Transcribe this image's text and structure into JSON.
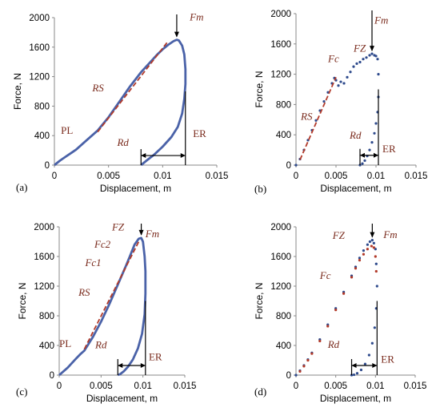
{
  "chart_data": [
    {
      "type": "line",
      "panel_label": "(a)",
      "xlabel": "Displacement, m",
      "ylabel": "Force, N",
      "xlim": [
        0,
        0.015
      ],
      "ylim": [
        0,
        2000
      ],
      "xticks": [
        "0",
        "0.005",
        "0.01",
        "0.015"
      ],
      "yticks": [
        "0",
        "400",
        "800",
        "1200",
        "1600",
        "2000"
      ],
      "series": [
        {
          "style": "solid",
          "color": "#4a62a8",
          "x": [
            0.0,
            0.0005,
            0.001,
            0.0015,
            0.002,
            0.003,
            0.004,
            0.005,
            0.006,
            0.007,
            0.008,
            0.009,
            0.0095,
            0.01,
            0.0105,
            0.011,
            0.0113,
            0.0115,
            0.0118,
            0.012,
            0.0121,
            0.0121,
            0.012,
            0.0118,
            0.0114,
            0.0108,
            0.01,
            0.0092,
            0.0085,
            0.008
          ],
          "y": [
            0,
            60,
            110,
            160,
            210,
            340,
            470,
            650,
            860,
            1070,
            1260,
            1420,
            1500,
            1570,
            1630,
            1680,
            1700,
            1690,
            1620,
            1500,
            1300,
            1100,
            900,
            700,
            520,
            380,
            250,
            140,
            60,
            0
          ]
        },
        {
          "style": "dashed",
          "color": "#b23a2a",
          "x": [
            0.004,
            0.0105
          ],
          "y": [
            450,
            1680
          ]
        }
      ],
      "annotations": {
        "PL": "PL",
        "RS": "RS",
        "Rd": "Rd",
        "ER": "ER",
        "Fm": "Fm"
      }
    },
    {
      "type": "scatter",
      "panel_label": "(b)",
      "xlabel": "Displacement, m",
      "ylabel": "Force, N",
      "xlim": [
        0,
        0.015
      ],
      "ylim": [
        0,
        2000
      ],
      "xticks": [
        "0",
        "0.005",
        "0.01",
        "0.015"
      ],
      "yticks": [
        "0",
        "400",
        "800",
        "1200",
        "1600",
        "2000"
      ],
      "series": [
        {
          "style": "points",
          "color": "#2e4a8c",
          "x": [
            0.0,
            0.0005,
            0.001,
            0.0015,
            0.002,
            0.0025,
            0.003,
            0.0035,
            0.004,
            0.0045,
            0.0048,
            0.005,
            0.0053,
            0.0056,
            0.006,
            0.0064,
            0.0068,
            0.0072,
            0.0076,
            0.008,
            0.0084,
            0.0088,
            0.0092,
            0.0095,
            0.0098,
            0.01,
            0.0102,
            0.0103,
            0.0103,
            0.0102,
            0.01,
            0.0098,
            0.0095,
            0.0092,
            0.0089,
            0.0086,
            0.0083,
            0.008
          ],
          "y": [
            0,
            80,
            200,
            330,
            460,
            590,
            720,
            840,
            960,
            1080,
            1150,
            1120,
            1050,
            1100,
            1080,
            1160,
            1230,
            1300,
            1340,
            1360,
            1400,
            1420,
            1450,
            1470,
            1450,
            1440,
            1400,
            1200,
            900,
            700,
            550,
            420,
            300,
            200,
            120,
            60,
            20,
            0
          ]
        },
        {
          "style": "dashed",
          "color": "#b23a2a",
          "x": [
            0.0005,
            0.005
          ],
          "y": [
            70,
            1160
          ]
        }
      ],
      "annotations": {
        "FZ": "FZ",
        "Fc": "Fc",
        "RS": "RS",
        "Rd": "Rd",
        "ER": "ER",
        "Fm": "Fm"
      }
    },
    {
      "type": "line",
      "panel_label": "(c)",
      "xlabel": "Displacement, m",
      "ylabel": "Force, N",
      "xlim": [
        0,
        0.015
      ],
      "ylim": [
        0,
        2000
      ],
      "xticks": [
        "0",
        "0.005",
        "0.01",
        "0.015"
      ],
      "yticks": [
        "0",
        "400",
        "800",
        "1200",
        "1600",
        "2000"
      ],
      "series": [
        {
          "style": "solid",
          "color": "#4a62a8",
          "x": [
            0.0,
            0.0005,
            0.001,
            0.0015,
            0.002,
            0.0025,
            0.003,
            0.004,
            0.005,
            0.006,
            0.007,
            0.008,
            0.0085,
            0.009,
            0.0095,
            0.0098,
            0.01,
            0.0102,
            0.0103,
            0.0103,
            0.0102,
            0.0099,
            0.0094,
            0.0088,
            0.0082,
            0.0077,
            0.0073,
            0.007
          ],
          "y": [
            0,
            50,
            100,
            160,
            220,
            280,
            330,
            510,
            720,
            960,
            1220,
            1480,
            1620,
            1760,
            1840,
            1850,
            1800,
            1600,
            1400,
            1100,
            820,
            560,
            360,
            210,
            110,
            50,
            15,
            0
          ]
        },
        {
          "style": "dashed",
          "color": "#b23a2a",
          "x": [
            0.003,
            0.0095
          ],
          "y": [
            350,
            1800
          ]
        }
      ],
      "annotations": {
        "PL": "PL",
        "RS": "RS",
        "Rd": "Rd",
        "ER": "ER",
        "Fm": "Fm",
        "Fc1": "Fc1",
        "Fc2": "Fc2",
        "FZ": "FZ"
      }
    },
    {
      "type": "scatter",
      "panel_label": "(d)",
      "xlabel": "Displacement, m",
      "ylabel": "Force, N",
      "xlim": [
        0,
        0.015
      ],
      "ylim": [
        0,
        2000
      ],
      "xticks": [
        "0",
        "0.005",
        "0.01",
        "0.015"
      ],
      "yticks": [
        "0",
        "400",
        "800",
        "1200",
        "1600",
        "2000"
      ],
      "series": [
        {
          "style": "points",
          "color": "#2e4a8c",
          "x": [
            0.0,
            0.0005,
            0.001,
            0.0015,
            0.002,
            0.003,
            0.004,
            0.005,
            0.006,
            0.007,
            0.0075,
            0.008,
            0.0085,
            0.009,
            0.0093,
            0.0096,
            0.0098,
            0.01,
            0.0101,
            0.0102,
            0.0101,
            0.0099,
            0.0096,
            0.0092,
            0.0087,
            0.0082,
            0.0077,
            0.0073,
            0.007
          ],
          "y": [
            0,
            60,
            130,
            210,
            300,
            480,
            680,
            900,
            1120,
            1340,
            1460,
            1580,
            1680,
            1760,
            1800,
            1820,
            1780,
            1700,
            1500,
            1200,
            900,
            640,
            430,
            270,
            150,
            70,
            25,
            5,
            0
          ]
        },
        {
          "style": "points",
          "color": "#b23a2a",
          "x": [
            0.0005,
            0.001,
            0.0015,
            0.002,
            0.003,
            0.004,
            0.005,
            0.006,
            0.007,
            0.0075,
            0.008,
            0.0085,
            0.009,
            0.0095,
            0.0098,
            0.01,
            0.0101
          ],
          "y": [
            50,
            120,
            200,
            290,
            460,
            660,
            880,
            1100,
            1320,
            1440,
            1550,
            1630,
            1700,
            1740,
            1720,
            1600,
            1400
          ]
        }
      ],
      "annotations": {
        "FZ": "FZ",
        "Fc": "Fc",
        "Rd": "Rd",
        "ER": "ER",
        "Fm": "Fm"
      }
    }
  ]
}
